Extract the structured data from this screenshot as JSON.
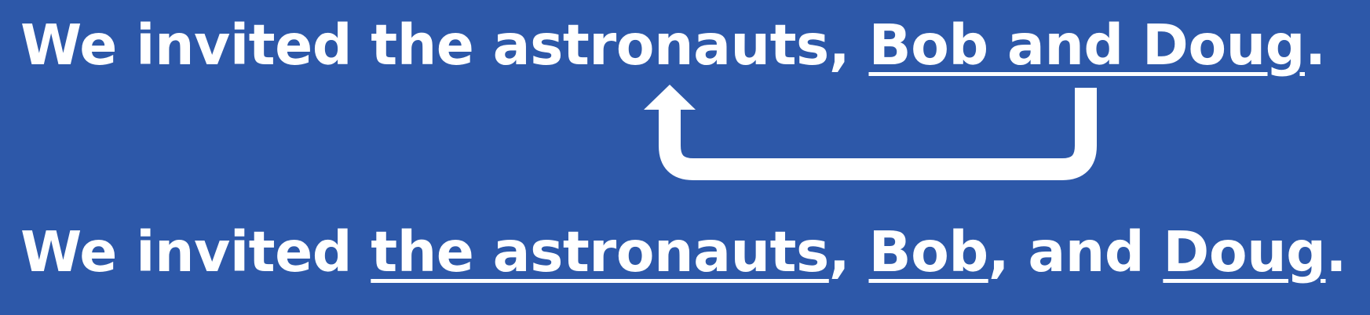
{
  "sentence_1": {
    "lead": "We invited the ",
    "target": "astronauts",
    "comma": ", ",
    "appositive": "Bob and Doug",
    "end": "."
  },
  "sentence_2": {
    "lead": "We invited ",
    "item_1": "the astronauts",
    "comma_1": ", ",
    "item_2": "Bob",
    "comma_2": ", and ",
    "item_3": "Doug",
    "end": "."
  },
  "colors": {
    "background": "#2d58a9",
    "foreground": "#ffffff"
  },
  "icons": {
    "connector": "return-arrow-icon"
  }
}
